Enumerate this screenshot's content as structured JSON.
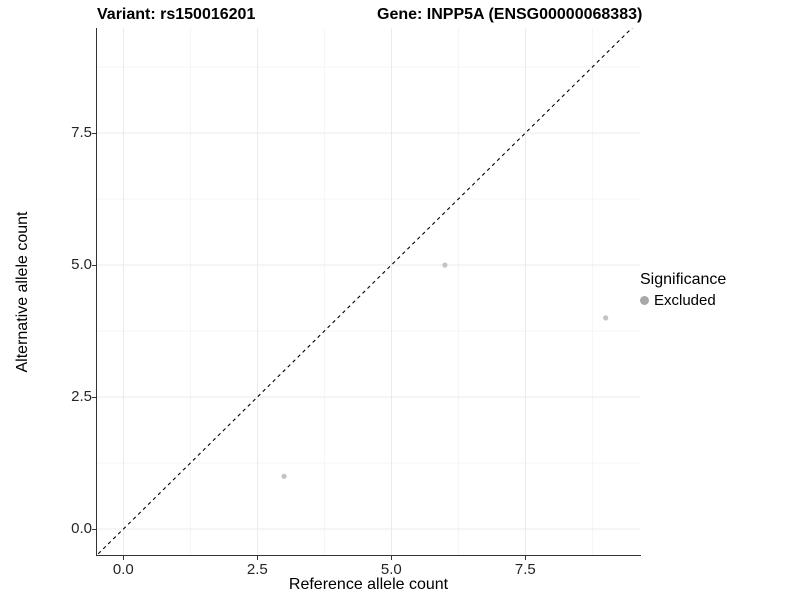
{
  "title": {
    "variant": "Variant: rs150016201",
    "gene": "Gene: INPP5A (ENSG00000068383)"
  },
  "chart_data": {
    "type": "scatter",
    "title": "Variant: rs150016201    Gene: INPP5A (ENSG00000068383)",
    "xlabel": "Reference allele count",
    "ylabel": "Alternative allele count",
    "x_tick_labels": [
      "0.0",
      "2.5",
      "5.0",
      "7.5"
    ],
    "y_tick_labels": [
      "0.0",
      "2.5",
      "5.0",
      "7.5"
    ],
    "x_tick_values": [
      0,
      2.5,
      5,
      7.5
    ],
    "y_tick_values": [
      0,
      2.5,
      5,
      7.5
    ],
    "x_minor_values": [
      1.25,
      3.75,
      6.25,
      8.75
    ],
    "y_minor_values": [
      1.25,
      3.75,
      6.25,
      8.75
    ],
    "xlim": [
      -0.49,
      9.64
    ],
    "ylim": [
      -0.49,
      9.49
    ],
    "grid": true,
    "colors": {
      "point": "#c3c3c3",
      "major_grid": "#ebebeb",
      "minor_grid": "#f5f5f5",
      "axis": "#333333",
      "identity_line": "#000000"
    },
    "series": [
      {
        "name": "Excluded",
        "color": "#c3c3c3",
        "points": [
          {
            "x": 3,
            "y": 1
          },
          {
            "x": 6,
            "y": 5
          },
          {
            "x": 9,
            "y": 4
          }
        ]
      }
    ],
    "identity_line": {
      "style": "dashed",
      "slope": 1,
      "intercept": 0
    },
    "legend_position": "right"
  },
  "legend": {
    "title": "Significance",
    "items": [
      {
        "label": "Excluded",
        "color": "#a8a8a8"
      }
    ]
  },
  "axes": {
    "x_title": "Reference allele count",
    "y_title": "Alternative allele count"
  }
}
